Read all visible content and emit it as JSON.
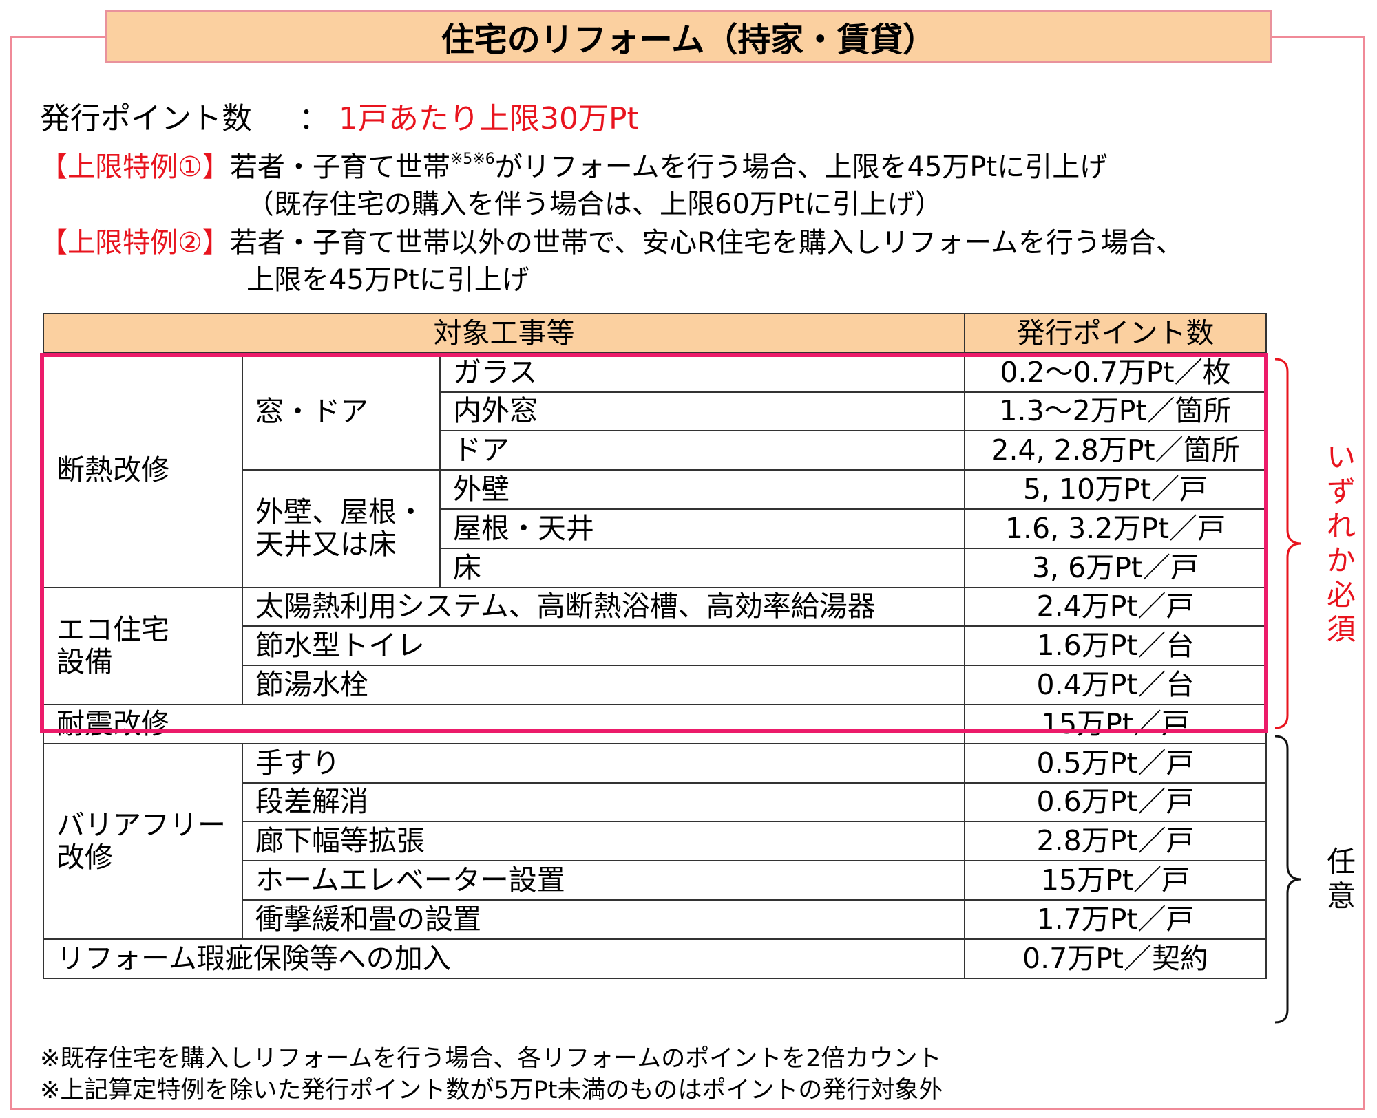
{
  "title": "住宅のリフォーム（持家・賃貸）",
  "points_line": {
    "label": "発行ポイント数",
    "colon": "：",
    "value": "1戸あたり上限30万Pt"
  },
  "special1": {
    "tag": "【上限特例①】",
    "text_a": "若者・子育て世帯",
    "sup": "※5※6",
    "text_b": "がリフォームを行う場合、上限を45万Ptに引上げ",
    "line2": "（既存住宅の購入を伴う場合は、上限60万Ptに引上げ）"
  },
  "special2": {
    "tag": "【上限特例②】",
    "line1": "若者・子育て世帯以外の世帯で、安心R住宅を購入しリフォームを行う場合、",
    "line2": "上限を45万Ptに引上げ"
  },
  "table": {
    "headers": [
      "対象工事等",
      "発行ポイント数"
    ],
    "insulation": {
      "category": "断熱改修",
      "window_group": "窓・ドア",
      "wall_group_line1": "外壁、屋根・",
      "wall_group_line2": "天井又は床",
      "rows": [
        {
          "item": "ガラス",
          "points": "0.2〜0.7万Pt／枚"
        },
        {
          "item": "内外窓",
          "points": "1.3〜2万Pt／箇所"
        },
        {
          "item": "ドア",
          "points": "2.4, 2.8万Pt／箇所"
        },
        {
          "item": "外壁",
          "points": "5, 10万Pt／戸"
        },
        {
          "item": "屋根・天井",
          "points": "1.6, 3.2万Pt／戸"
        },
        {
          "item": "床",
          "points": "3, 6万Pt／戸"
        }
      ]
    },
    "eco": {
      "category_line1": "エコ住宅",
      "category_line2": "設備",
      "rows": [
        {
          "item": "太陽熱利用システム、高断熱浴槽、高効率給湯器",
          "points": "2.4万Pt／戸"
        },
        {
          "item": "節水型トイレ",
          "points": "1.6万Pt／台"
        },
        {
          "item": "節湯水栓",
          "points": "0.4万Pt／台"
        }
      ]
    },
    "seismic": {
      "item": "耐震改修",
      "points": "15万Pt／戸"
    },
    "barrier_free": {
      "category_line1": "バリアフリー",
      "category_line2": "改修",
      "rows": [
        {
          "item": "手すり",
          "points": "0.5万Pt／戸"
        },
        {
          "item": "段差解消",
          "points": "0.6万Pt／戸"
        },
        {
          "item": "廊下幅等拡張",
          "points": "2.8万Pt／戸"
        },
        {
          "item": "ホームエレベーター設置",
          "points": "15万Pt／戸"
        },
        {
          "item": "衝撃緩和畳の設置",
          "points": "1.7万Pt／戸"
        }
      ]
    },
    "warranty": {
      "item": "リフォーム瑕疵保険等への加入",
      "points": "0.7万Pt／契約"
    }
  },
  "brackets": {
    "required": "いずれか必須",
    "optional": "任意"
  },
  "notes": [
    "※既存住宅を購入しリフォームを行う場合、各リフォームのポイントを2倍カウント",
    "※上記算定特例を除いた発行ポイント数が5万Pt未満のものはポイントの発行対象外"
  ],
  "colors": {
    "accent_red": "#e8141e",
    "highlight": "#ec1b6a",
    "header_bg": "#fbd0a0",
    "frame": "#f08a98"
  }
}
